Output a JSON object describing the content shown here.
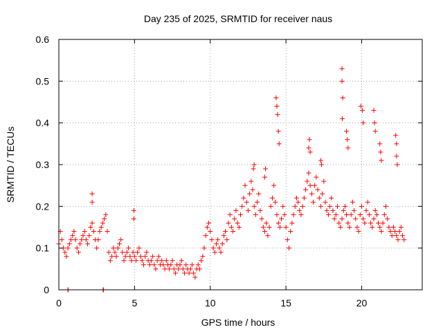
{
  "chart_data": {
    "type": "scatter",
    "title": "Day 235 of 2025, SRMTID for receiver naus",
    "xlabel": "GPS time / hours",
    "ylabel": "SRMTID / TECUs",
    "xlim": [
      0,
      24
    ],
    "ylim": [
      0,
      0.6
    ],
    "xticks": [
      0,
      5,
      10,
      15,
      20
    ],
    "xtick_labels": [
      "0",
      "5",
      "10",
      "15",
      "20"
    ],
    "yticks": [
      0,
      0.1,
      0.2,
      0.3,
      0.4,
      0.5,
      0.6
    ],
    "ytick_labels": [
      "0",
      "0.1",
      "0.2",
      "0.3",
      "0.4",
      "0.5",
      "0.6"
    ],
    "grid": true,
    "marker": "+",
    "color": "#ff0000",
    "series": [
      {
        "name": "SRMTID",
        "x": [
          0.0,
          0.1,
          0.2,
          0.3,
          0.4,
          0.5,
          0.6,
          0.7,
          0.8,
          0.9,
          1.0,
          1.1,
          1.2,
          1.3,
          1.4,
          1.5,
          1.6,
          1.7,
          1.8,
          1.9,
          2.0,
          2.1,
          2.2,
          2.3,
          2.4,
          2.5,
          2.6,
          2.7,
          2.8,
          2.9,
          3.0,
          3.1,
          3.2,
          3.3,
          3.4,
          3.5,
          3.6,
          3.7,
          3.8,
          3.9,
          4.0,
          4.1,
          4.2,
          4.3,
          4.4,
          4.5,
          4.6,
          4.7,
          4.8,
          4.9,
          5.0,
          5.1,
          5.2,
          5.3,
          5.4,
          5.5,
          5.6,
          5.7,
          5.8,
          5.9,
          6.0,
          6.1,
          6.2,
          6.3,
          6.4,
          6.5,
          6.6,
          6.7,
          6.8,
          6.9,
          7.0,
          7.1,
          7.2,
          7.3,
          7.4,
          7.5,
          7.6,
          7.7,
          7.8,
          7.9,
          8.0,
          8.1,
          8.2,
          8.3,
          8.4,
          8.5,
          8.6,
          8.7,
          8.8,
          8.9,
          9.0,
          9.1,
          9.2,
          9.3,
          9.4,
          9.5,
          9.6,
          9.7,
          9.8,
          9.9,
          10.0,
          10.1,
          10.2,
          10.3,
          10.4,
          10.5,
          10.6,
          10.7,
          10.8,
          10.9,
          11.0,
          11.1,
          11.2,
          11.3,
          11.4,
          11.5,
          11.6,
          11.7,
          11.8,
          11.9,
          12.0,
          12.1,
          12.2,
          12.3,
          12.4,
          12.5,
          12.6,
          12.7,
          12.8,
          12.9,
          13.0,
          13.1,
          13.2,
          13.3,
          13.4,
          13.5,
          13.6,
          13.7,
          13.8,
          13.9,
          14.0,
          14.1,
          14.2,
          14.3,
          14.4,
          14.5,
          14.6,
          14.7,
          14.8,
          14.9,
          15.0,
          15.1,
          15.2,
          15.3,
          15.4,
          15.5,
          15.6,
          15.7,
          15.8,
          15.9,
          16.0,
          16.1,
          16.2,
          16.3,
          16.4,
          16.5,
          16.6,
          16.7,
          16.8,
          16.9,
          17.0,
          17.1,
          17.2,
          17.3,
          17.4,
          17.5,
          17.6,
          17.7,
          17.8,
          17.9,
          18.0,
          18.1,
          18.2,
          18.3,
          18.4,
          18.5,
          18.6,
          18.7,
          18.8,
          18.9,
          19.0,
          19.1,
          19.2,
          19.3,
          19.4,
          19.5,
          19.6,
          19.7,
          19.8,
          19.9,
          20.0,
          20.1,
          20.2,
          20.3,
          20.4,
          20.5,
          20.6,
          20.7,
          20.8,
          20.9,
          21.0,
          21.1,
          21.2,
          21.3,
          21.4,
          21.5,
          21.6,
          21.7,
          21.8,
          21.9,
          22.0,
          22.1,
          22.2,
          22.3,
          22.4,
          22.5,
          22.6,
          22.7,
          22.8,
          0.6,
          0.62,
          2.92,
          2.95,
          2.2,
          2.2,
          4.95,
          4.95,
          14.35,
          14.4,
          14.45,
          14.5,
          14.55,
          18.7,
          18.7,
          18.75,
          18.72,
          19.0,
          19.05,
          19.1,
          19.95,
          20.05,
          20.1,
          20.8,
          20.85,
          20.9,
          21.2,
          21.25,
          21.3,
          22.25,
          22.3,
          22.3,
          22.35,
          12.85,
          12.9,
          13.6,
          13.65,
          16.5,
          16.55,
          16.6,
          17.3,
          17.35
        ],
        "y": [
          0.11,
          0.14,
          0.12,
          0.1,
          0.09,
          0.08,
          0.1,
          0.11,
          0.12,
          0.13,
          0.14,
          0.12,
          0.1,
          0.09,
          0.11,
          0.12,
          0.13,
          0.14,
          0.12,
          0.11,
          0.13,
          0.15,
          0.16,
          0.14,
          0.12,
          0.1,
          0.12,
          0.14,
          0.15,
          0.16,
          0.17,
          0.18,
          0.14,
          0.09,
          0.07,
          0.08,
          0.1,
          0.09,
          0.08,
          0.1,
          0.11,
          0.12,
          0.09,
          0.07,
          0.08,
          0.09,
          0.1,
          0.08,
          0.07,
          0.09,
          0.08,
          0.07,
          0.09,
          0.1,
          0.08,
          0.07,
          0.06,
          0.08,
          0.09,
          0.07,
          0.06,
          0.07,
          0.08,
          0.06,
          0.05,
          0.07,
          0.08,
          0.06,
          0.07,
          0.06,
          0.05,
          0.07,
          0.06,
          0.05,
          0.06,
          0.07,
          0.05,
          0.04,
          0.06,
          0.05,
          0.06,
          0.07,
          0.05,
          0.04,
          0.06,
          0.05,
          0.04,
          0.05,
          0.06,
          0.04,
          0.03,
          0.05,
          0.06,
          0.05,
          0.07,
          0.08,
          0.1,
          0.13,
          0.15,
          0.16,
          0.14,
          0.12,
          0.1,
          0.09,
          0.11,
          0.12,
          0.1,
          0.09,
          0.11,
          0.13,
          0.14,
          0.12,
          0.16,
          0.18,
          0.15,
          0.14,
          0.17,
          0.19,
          0.16,
          0.15,
          0.18,
          0.2,
          0.22,
          0.25,
          0.21,
          0.19,
          0.23,
          0.26,
          0.24,
          0.2,
          0.18,
          0.21,
          0.23,
          0.19,
          0.17,
          0.15,
          0.14,
          0.16,
          0.13,
          0.15,
          0.2,
          0.22,
          0.25,
          0.21,
          0.18,
          0.16,
          0.15,
          0.17,
          0.2,
          0.18,
          0.15,
          0.12,
          0.1,
          0.14,
          0.16,
          0.18,
          0.2,
          0.22,
          0.21,
          0.19,
          0.18,
          0.2,
          0.22,
          0.24,
          0.26,
          0.28,
          0.25,
          0.23,
          0.21,
          0.25,
          0.27,
          0.24,
          0.22,
          0.2,
          0.23,
          0.26,
          0.21,
          0.19,
          0.18,
          0.2,
          0.22,
          0.19,
          0.17,
          0.18,
          0.2,
          0.16,
          0.15,
          0.17,
          0.19,
          0.2,
          0.18,
          0.16,
          0.15,
          0.18,
          0.21,
          0.19,
          0.17,
          0.15,
          0.14,
          0.18,
          0.2,
          0.17,
          0.16,
          0.19,
          0.21,
          0.18,
          0.16,
          0.15,
          0.17,
          0.19,
          0.18,
          0.16,
          0.15,
          0.14,
          0.16,
          0.18,
          0.2,
          0.17,
          0.15,
          0.14,
          0.13,
          0.15,
          0.14,
          0.13,
          0.12,
          0.14,
          0.15,
          0.13,
          0.12,
          0.0,
          0.0,
          0.0,
          0.0,
          0.23,
          0.21,
          0.19,
          0.17,
          0.46,
          0.44,
          0.42,
          0.38,
          0.35,
          0.53,
          0.5,
          0.46,
          0.41,
          0.38,
          0.36,
          0.34,
          0.44,
          0.43,
          0.4,
          0.43,
          0.4,
          0.38,
          0.35,
          0.33,
          0.31,
          0.37,
          0.35,
          0.32,
          0.3,
          0.29,
          0.3,
          0.27,
          0.29,
          0.34,
          0.36,
          0.33,
          0.31,
          0.3
        ]
      }
    ]
  }
}
